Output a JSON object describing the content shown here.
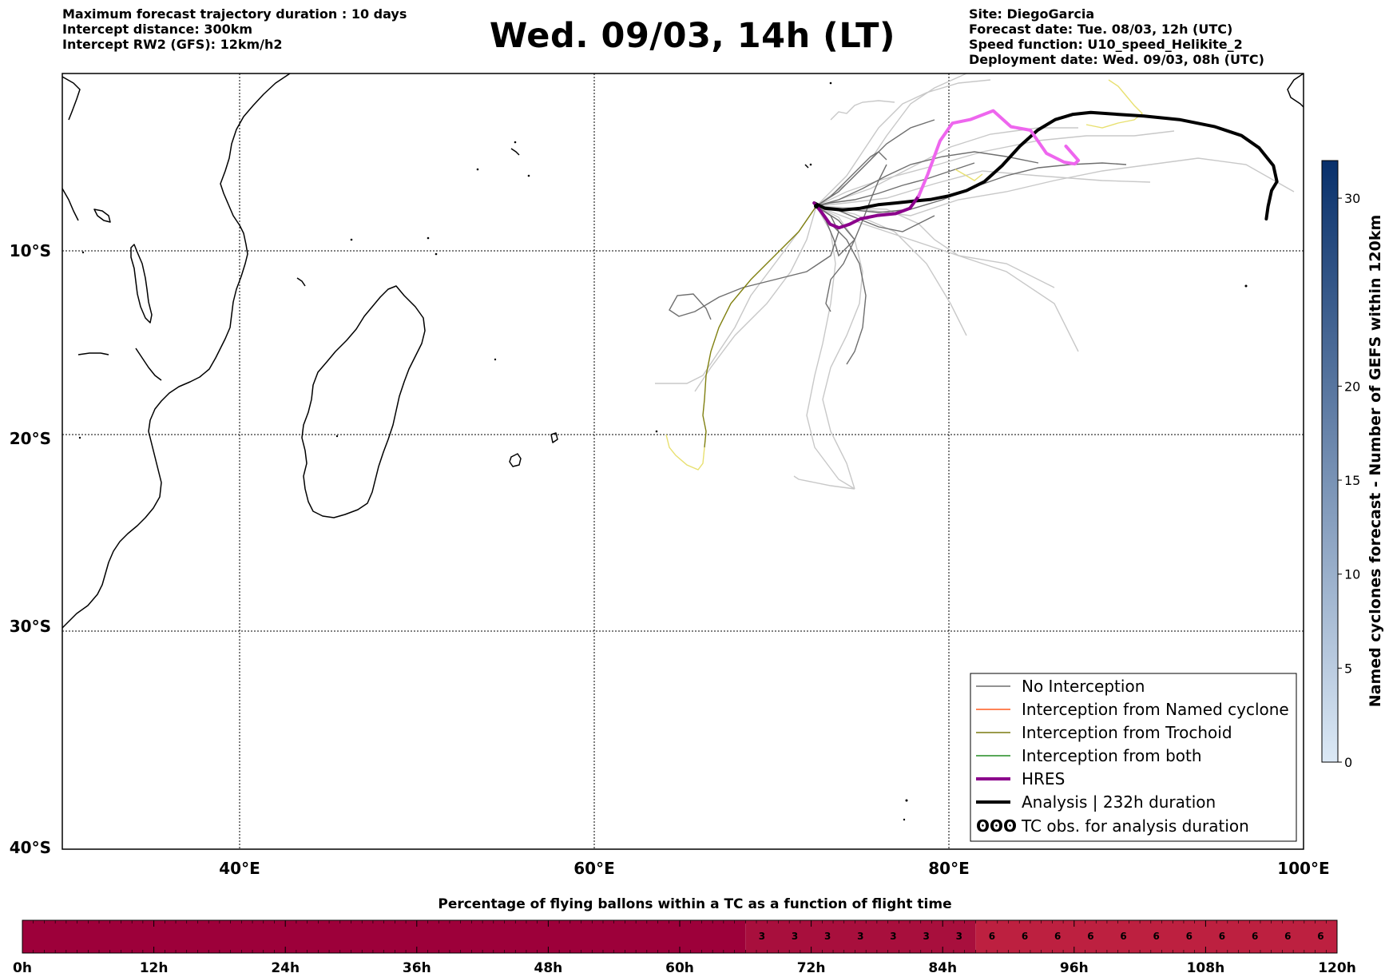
{
  "header": {
    "left": [
      "Maximum forecast trajectory duration : 10 days",
      "Intercept distance: 300km",
      "Intercept RW2 (GFS):  12km/h2"
    ],
    "title": "Wed. 09/03, 14h (LT)",
    "right": [
      "Site: DiegoGarcia",
      "Forecast date: Tue. 08/03, 12h (UTC)",
      "Speed function: U10_speed_Helikite_2",
      "Deployment date: Wed. 09/03, 08h (UTC)"
    ]
  },
  "map": {
    "lon_ticks": [
      {
        "lon": 40,
        "label": "40°E"
      },
      {
        "lon": 60,
        "label": "60°E"
      },
      {
        "lon": 80,
        "label": "80°E"
      },
      {
        "lon": 100,
        "label": "100°E"
      }
    ],
    "lat_ticks": [
      {
        "lat": -10,
        "label": "10°S"
      },
      {
        "lat": -20,
        "label": "20°S"
      },
      {
        "lat": -30,
        "label": "30°S"
      },
      {
        "lat": -40,
        "label": "40°S"
      }
    ],
    "lon_range": [
      30,
      100
    ],
    "lat_range": [
      -40,
      -0.1
    ],
    "grid": true,
    "gridline_style": "dotted"
  },
  "legend": {
    "position": "lower-right",
    "items": [
      {
        "label": "No Interception",
        "color": "#6e6e6e",
        "style": "thin"
      },
      {
        "label": "Interception from Named cyclone",
        "color": "#ff5a1e",
        "style": "thin"
      },
      {
        "label": "Interception from Trochoid",
        "color": "#7a7a10",
        "style": "thin"
      },
      {
        "label": "Interception from both",
        "color": "#228b22",
        "style": "thin"
      },
      {
        "label": "HRES",
        "color": "#8b008b",
        "style": "thick"
      },
      {
        "label": "Analysis | 232h duration",
        "color": "#000000",
        "style": "thick"
      },
      {
        "label": "TC obs. for analysis duration",
        "color": "#000000",
        "style": "symbol",
        "symbol": "ʘʘʘ"
      }
    ]
  },
  "colorbar": {
    "title": "Named cyclones forecast - Number of GEFS within 120km",
    "range": [
      0,
      32
    ],
    "ticks": [
      0,
      5,
      10,
      15,
      20,
      30
    ],
    "tick_labels": [
      "0",
      "5",
      "10",
      "15",
      "20",
      "30"
    ],
    "color_low": "#dce9f6",
    "color_high": "#08306b"
  },
  "timebar": {
    "title": "Percentage of flying ballons within a TC as a function of flight time",
    "hours_range": [
      0,
      120
    ],
    "tick_labels": [
      "0h",
      "12h",
      "24h",
      "36h",
      "48h",
      "60h",
      "72h",
      "84h",
      "96h",
      "108h",
      "120h"
    ],
    "segments": [
      {
        "from": 0,
        "to": 66,
        "value": 0,
        "color": "#9d003a"
      },
      {
        "from": 66,
        "to": 87,
        "value": 3,
        "color": "#a80f3d"
      },
      {
        "from": 87,
        "to": 120,
        "value": 6,
        "color": "#bd2040"
      }
    ]
  },
  "chart_data": {
    "type": "map-trajectories",
    "site": "DiegoGarcia",
    "release_point": {
      "lon": 72.4,
      "lat": -7.3
    },
    "series": [
      {
        "name": "Analysis | 232h duration",
        "color": "#000000",
        "points": [
          [
            72.4,
            -7.3
          ],
          [
            73.0,
            -7.6
          ],
          [
            74.0,
            -7.7
          ],
          [
            75.0,
            -7.6
          ],
          [
            76.0,
            -7.4
          ],
          [
            77.0,
            -7.3
          ],
          [
            78.0,
            -7.2
          ],
          [
            79.0,
            -7.1
          ],
          [
            80.0,
            -6.9
          ],
          [
            81.0,
            -6.6
          ],
          [
            82.0,
            -6.1
          ],
          [
            83.0,
            -5.2
          ],
          [
            84.0,
            -4.1
          ],
          [
            85.0,
            -3.2
          ],
          [
            86.0,
            -2.6
          ],
          [
            87.0,
            -2.3
          ],
          [
            88.0,
            -2.2
          ],
          [
            89.5,
            -2.3
          ],
          [
            91.0,
            -2.4
          ],
          [
            93.0,
            -2.6
          ],
          [
            95.0,
            -3.0
          ],
          [
            96.5,
            -3.5
          ],
          [
            97.5,
            -4.2
          ],
          [
            98.3,
            -5.2
          ],
          [
            98.5,
            -6.1
          ],
          [
            98.2,
            -6.6
          ],
          [
            98.0,
            -7.5
          ],
          [
            97.9,
            -8.2
          ]
        ]
      },
      {
        "name": "HRES",
        "color": "#8b008b",
        "points": [
          [
            72.4,
            -7.3
          ],
          [
            72.8,
            -7.8
          ],
          [
            73.3,
            -8.5
          ],
          [
            73.8,
            -8.7
          ],
          [
            74.4,
            -8.5
          ],
          [
            75.0,
            -8.2
          ],
          [
            76.0,
            -8.0
          ],
          [
            77.0,
            -7.9
          ],
          [
            77.8,
            -7.6
          ],
          [
            78.3,
            -6.9
          ]
        ]
      },
      {
        "name": "HRES (continued)",
        "color": "#ee66ee",
        "points": [
          [
            78.3,
            -6.9
          ],
          [
            78.8,
            -5.7
          ],
          [
            79.5,
            -3.8
          ],
          [
            80.2,
            -2.8
          ],
          [
            81.2,
            -2.6
          ],
          [
            82.5,
            -2.1
          ],
          [
            83.5,
            -3.0
          ],
          [
            84.6,
            -3.2
          ],
          [
            85.5,
            -4.5
          ],
          [
            86.5,
            -5.0
          ],
          [
            87.1,
            -5.1
          ],
          [
            87.3,
            -4.9
          ],
          [
            86.6,
            -4.1
          ]
        ]
      }
    ]
  }
}
